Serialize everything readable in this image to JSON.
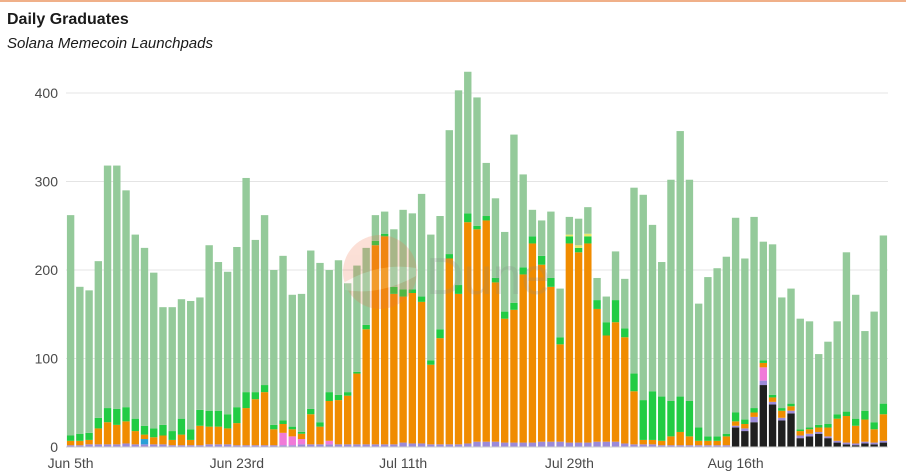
{
  "header": {
    "title": "Daily Graduates",
    "subtitle": "Solana Memecoin Launchpads"
  },
  "watermark": "Dune",
  "chart_data": {
    "type": "bar",
    "stacked": true,
    "title": "Daily Graduates",
    "subtitle": "Solana Memecoin Launchpads",
    "xlabel": "",
    "ylabel": "",
    "ylim": [
      0,
      430
    ],
    "yticks": [
      0,
      100,
      200,
      300,
      400
    ],
    "grid": true,
    "legend": "none",
    "x_tick_labels": [
      {
        "index": 0,
        "label": "Jun 5th"
      },
      {
        "index": 18,
        "label": "Jun 23rd"
      },
      {
        "index": 36,
        "label": "Jul 11th"
      },
      {
        "index": 54,
        "label": "Jul 29th"
      },
      {
        "index": 72,
        "label": "Aug 16th"
      }
    ],
    "categories": [
      "Jun 5",
      "Jun 6",
      "Jun 7",
      "Jun 8",
      "Jun 9",
      "Jun 10",
      "Jun 11",
      "Jun 12",
      "Jun 13",
      "Jun 14",
      "Jun 15",
      "Jun 16",
      "Jun 17",
      "Jun 18",
      "Jun 19",
      "Jun 20",
      "Jun 21",
      "Jun 22",
      "Jun 23",
      "Jun 24",
      "Jun 25",
      "Jun 26",
      "Jun 27",
      "Jun 28",
      "Jun 29",
      "Jun 30",
      "Jul 1",
      "Jul 2",
      "Jul 3",
      "Jul 4",
      "Jul 5",
      "Jul 6",
      "Jul 7",
      "Jul 8",
      "Jul 9",
      "Jul 10",
      "Jul 11",
      "Jul 12",
      "Jul 13",
      "Jul 14",
      "Jul 15",
      "Jul 16",
      "Jul 17",
      "Jul 18",
      "Jul 19",
      "Jul 20",
      "Jul 21",
      "Jul 22",
      "Jul 23",
      "Jul 24",
      "Jul 25",
      "Jul 26",
      "Jul 27",
      "Jul 28",
      "Jul 29",
      "Jul 30",
      "Jul 31",
      "Aug 1",
      "Aug 2",
      "Aug 3",
      "Aug 4",
      "Aug 5",
      "Aug 6",
      "Aug 7",
      "Aug 8",
      "Aug 9",
      "Aug 10",
      "Aug 11",
      "Aug 12",
      "Aug 13",
      "Aug 14",
      "Aug 15",
      "Aug 16",
      "Aug 17",
      "Aug 18",
      "Aug 19",
      "Aug 20",
      "Aug 21",
      "Aug 22",
      "Aug 23",
      "Aug 24",
      "Aug 25",
      "Aug 26",
      "Aug 27",
      "Aug 28",
      "Aug 29",
      "Aug 30",
      "Aug 31",
      "Sep 1"
    ],
    "series": [
      {
        "color": "#1f1f1f",
        "values": [
          0,
          0,
          0,
          0,
          0,
          0,
          0,
          0,
          0,
          0,
          0,
          0,
          0,
          0,
          0,
          0,
          0,
          0,
          0,
          0,
          0,
          0,
          0,
          0,
          0,
          0,
          0,
          0,
          0,
          0,
          0,
          0,
          0,
          0,
          0,
          0,
          0,
          0,
          0,
          0,
          0,
          0,
          0,
          0,
          0,
          0,
          0,
          0,
          0,
          0,
          0,
          0,
          0,
          0,
          0,
          0,
          0,
          0,
          0,
          0,
          0,
          0,
          0,
          0,
          0,
          0,
          0,
          0,
          0,
          0,
          0,
          0,
          22,
          18,
          28,
          70,
          48,
          30,
          38,
          10,
          12,
          15,
          10,
          5,
          3,
          2,
          4,
          3,
          5
        ]
      },
      {
        "color": "#9b8ad8",
        "values": [
          2,
          2,
          3,
          3,
          3,
          3,
          4,
          3,
          3,
          3,
          3,
          2,
          2,
          2,
          2,
          3,
          3,
          3,
          2,
          2,
          2,
          2,
          2,
          2,
          2,
          3,
          3,
          3,
          3,
          3,
          3,
          3,
          3,
          3,
          3,
          3,
          5,
          4,
          4,
          3,
          3,
          3,
          3,
          4,
          6,
          6,
          6,
          5,
          5,
          5,
          5,
          6,
          6,
          6,
          5,
          5,
          5,
          6,
          6,
          6,
          4,
          3,
          3,
          3,
          2,
          2,
          2,
          2,
          2,
          2,
          2,
          2,
          2,
          3,
          6,
          5,
          3,
          3,
          3,
          3,
          3,
          2,
          2,
          2,
          2,
          2,
          2,
          2,
          2
        ]
      },
      {
        "color": "#2a9fd6",
        "values": [
          0,
          0,
          0,
          0,
          0,
          0,
          0,
          0,
          6,
          0,
          0,
          0,
          0,
          0,
          0,
          0,
          0,
          0,
          0,
          0,
          0,
          0,
          0,
          0,
          0,
          0,
          0,
          0,
          0,
          0,
          0,
          0,
          0,
          0,
          0,
          0,
          0,
          0,
          0,
          0,
          0,
          0,
          0,
          0,
          0,
          0,
          0,
          0,
          0,
          0,
          0,
          0,
          0,
          0,
          0,
          0,
          0,
          0,
          0,
          0,
          0,
          0,
          0,
          0,
          0,
          0,
          0,
          0,
          0,
          0,
          0,
          0,
          0,
          0,
          0,
          0,
          0,
          0,
          0,
          0,
          0,
          0,
          0,
          0,
          0,
          0,
          0,
          0,
          0
        ]
      },
      {
        "color": "#f07ad8",
        "values": [
          0,
          0,
          0,
          0,
          0,
          0,
          0,
          0,
          0,
          0,
          0,
          0,
          0,
          0,
          0,
          0,
          0,
          0,
          0,
          0,
          0,
          0,
          0,
          14,
          10,
          6,
          0,
          0,
          4,
          0,
          0,
          0,
          0,
          0,
          0,
          0,
          0,
          0,
          0,
          0,
          0,
          0,
          0,
          0,
          0,
          0,
          0,
          0,
          0,
          0,
          0,
          0,
          0,
          0,
          0,
          0,
          0,
          0,
          0,
          0,
          0,
          0,
          0,
          0,
          0,
          0,
          0,
          0,
          0,
          0,
          0,
          0,
          0,
          0,
          0,
          15,
          0,
          0,
          0,
          0,
          0,
          0,
          0,
          0,
          0,
          0,
          0,
          0,
          0
        ]
      },
      {
        "color": "#f08c00",
        "values": [
          5,
          5,
          5,
          18,
          25,
          22,
          25,
          15,
          5,
          8,
          10,
          6,
          12,
          6,
          22,
          20,
          20,
          18,
          25,
          42,
          52,
          60,
          18,
          10,
          8,
          6,
          34,
          20,
          45,
          50,
          55,
          80,
          130,
          225,
          235,
          170,
          165,
          170,
          160,
          90,
          120,
          210,
          170,
          250,
          240,
          250,
          180,
          140,
          150,
          190,
          225,
          200,
          175,
          110,
          225,
          215,
          225,
          150,
          120,
          135,
          120,
          60,
          5,
          5,
          5,
          10,
          15,
          10,
          5,
          5,
          5,
          10,
          5,
          5,
          5,
          5,
          5,
          8,
          5,
          5,
          5,
          5,
          10,
          25,
          30,
          20,
          25,
          15,
          30
        ]
      },
      {
        "color": "#22cc44",
        "values": [
          6,
          8,
          8,
          12,
          16,
          18,
          16,
          14,
          10,
          10,
          12,
          10,
          18,
          12,
          18,
          18,
          18,
          16,
          18,
          18,
          8,
          8,
          5,
          4,
          3,
          2,
          6,
          5,
          10,
          6,
          4,
          2,
          5,
          5,
          3,
          8,
          8,
          4,
          6,
          5,
          10,
          5,
          10,
          10,
          4,
          5,
          5,
          8,
          8,
          8,
          8,
          10,
          10,
          8,
          8,
          5,
          8,
          10,
          15,
          25,
          10,
          20,
          45,
          55,
          50,
          40,
          40,
          40,
          15,
          5,
          5,
          3,
          10,
          5,
          5,
          3,
          3,
          3,
          3,
          2,
          2,
          3,
          4,
          5,
          5,
          8,
          10,
          8,
          12
        ]
      },
      {
        "color": "#e8e86a",
        "values": [
          0,
          0,
          0,
          0,
          0,
          0,
          0,
          0,
          0,
          0,
          0,
          0,
          0,
          0,
          0,
          0,
          0,
          0,
          0,
          0,
          0,
          0,
          0,
          0,
          0,
          0,
          0,
          0,
          0,
          0,
          0,
          0,
          0,
          0,
          0,
          0,
          0,
          0,
          0,
          0,
          0,
          0,
          0,
          0,
          0,
          0,
          0,
          0,
          0,
          0,
          0,
          0,
          0,
          0,
          2,
          3,
          3,
          0,
          0,
          0,
          0,
          0,
          0,
          0,
          0,
          0,
          0,
          0,
          0,
          0,
          0,
          0,
          0,
          0,
          0,
          0,
          0,
          0,
          0,
          0,
          0,
          0,
          0,
          0,
          0,
          0,
          0,
          0,
          0
        ]
      },
      {
        "color": "#94ca9a",
        "values": [
          249,
          166,
          161,
          177,
          274,
          275,
          245,
          208,
          201,
          176,
          133,
          140,
          135,
          145,
          127,
          187,
          168,
          161,
          181,
          242,
          172,
          192,
          175,
          186,
          149,
          156,
          179,
          180,
          138,
          152,
          123,
          120,
          87,
          29,
          25,
          65,
          90,
          86,
          116,
          142,
          128,
          140,
          220,
          160,
          145,
          60,
          90,
          90,
          190,
          105,
          30,
          40,
          75,
          55,
          20,
          30,
          30,
          25,
          29,
          55,
          56,
          210,
          232,
          188,
          152,
          250,
          300,
          250,
          140,
          180,
          190,
          200,
          220,
          182,
          216,
          134,
          170,
          125,
          130,
          125,
          120,
          80,
          93,
          105,
          180,
          140,
          90,
          125,
          190
        ]
      }
    ]
  }
}
